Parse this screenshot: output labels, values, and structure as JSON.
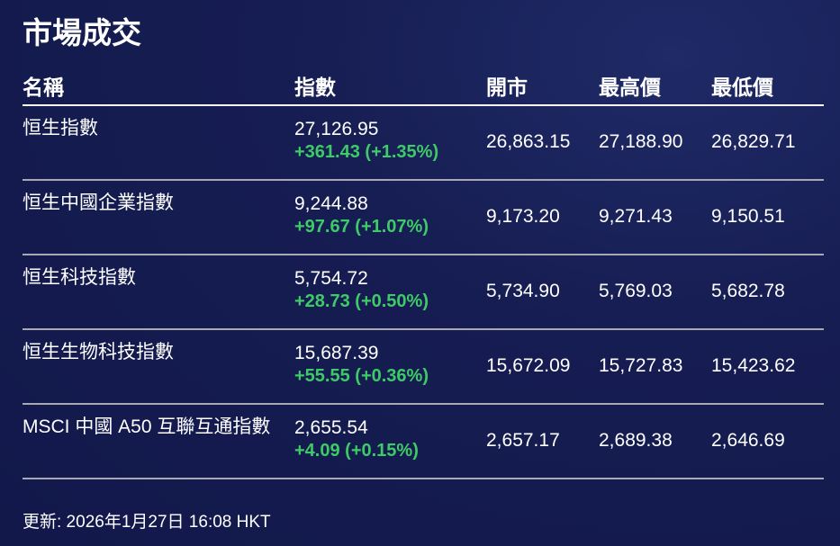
{
  "title": "市場成交",
  "headers": [
    "名稱",
    "指數",
    "開市",
    "最高價",
    "最低價"
  ],
  "rows": [
    {
      "name": "恒生指數",
      "value": "27,126.95",
      "change": "+361.43 (+1.35%)",
      "open": "26,863.15",
      "high": "27,188.90",
      "low": "26,829.71"
    },
    {
      "name": "恒生中國企業指數",
      "value": "9,244.88",
      "change": "+97.67 (+1.07%)",
      "open": "9,173.20",
      "high": "9,271.43",
      "low": "9,150.51"
    },
    {
      "name": "恒生科技指數",
      "value": "5,754.72",
      "change": "+28.73 (+0.50%)",
      "open": "5,734.90",
      "high": "5,769.03",
      "low": "5,682.78"
    },
    {
      "name": "恒生生物科技指數",
      "value": "15,687.39",
      "change": "+55.55 (+0.36%)",
      "open": "15,672.09",
      "high": "15,727.83",
      "low": "15,423.62"
    },
    {
      "name": "MSCI 中國 A50 互聯互通指數",
      "value": "2,655.54",
      "change": "+4.09 (+0.15%)",
      "open": "2,657.17",
      "high": "2,689.38",
      "low": "2,646.69"
    }
  ],
  "footer": "更新: 2026年1月27日 16:08 HKT",
  "colors": {
    "background": "#141a4a",
    "positive": "#3ecb67"
  }
}
